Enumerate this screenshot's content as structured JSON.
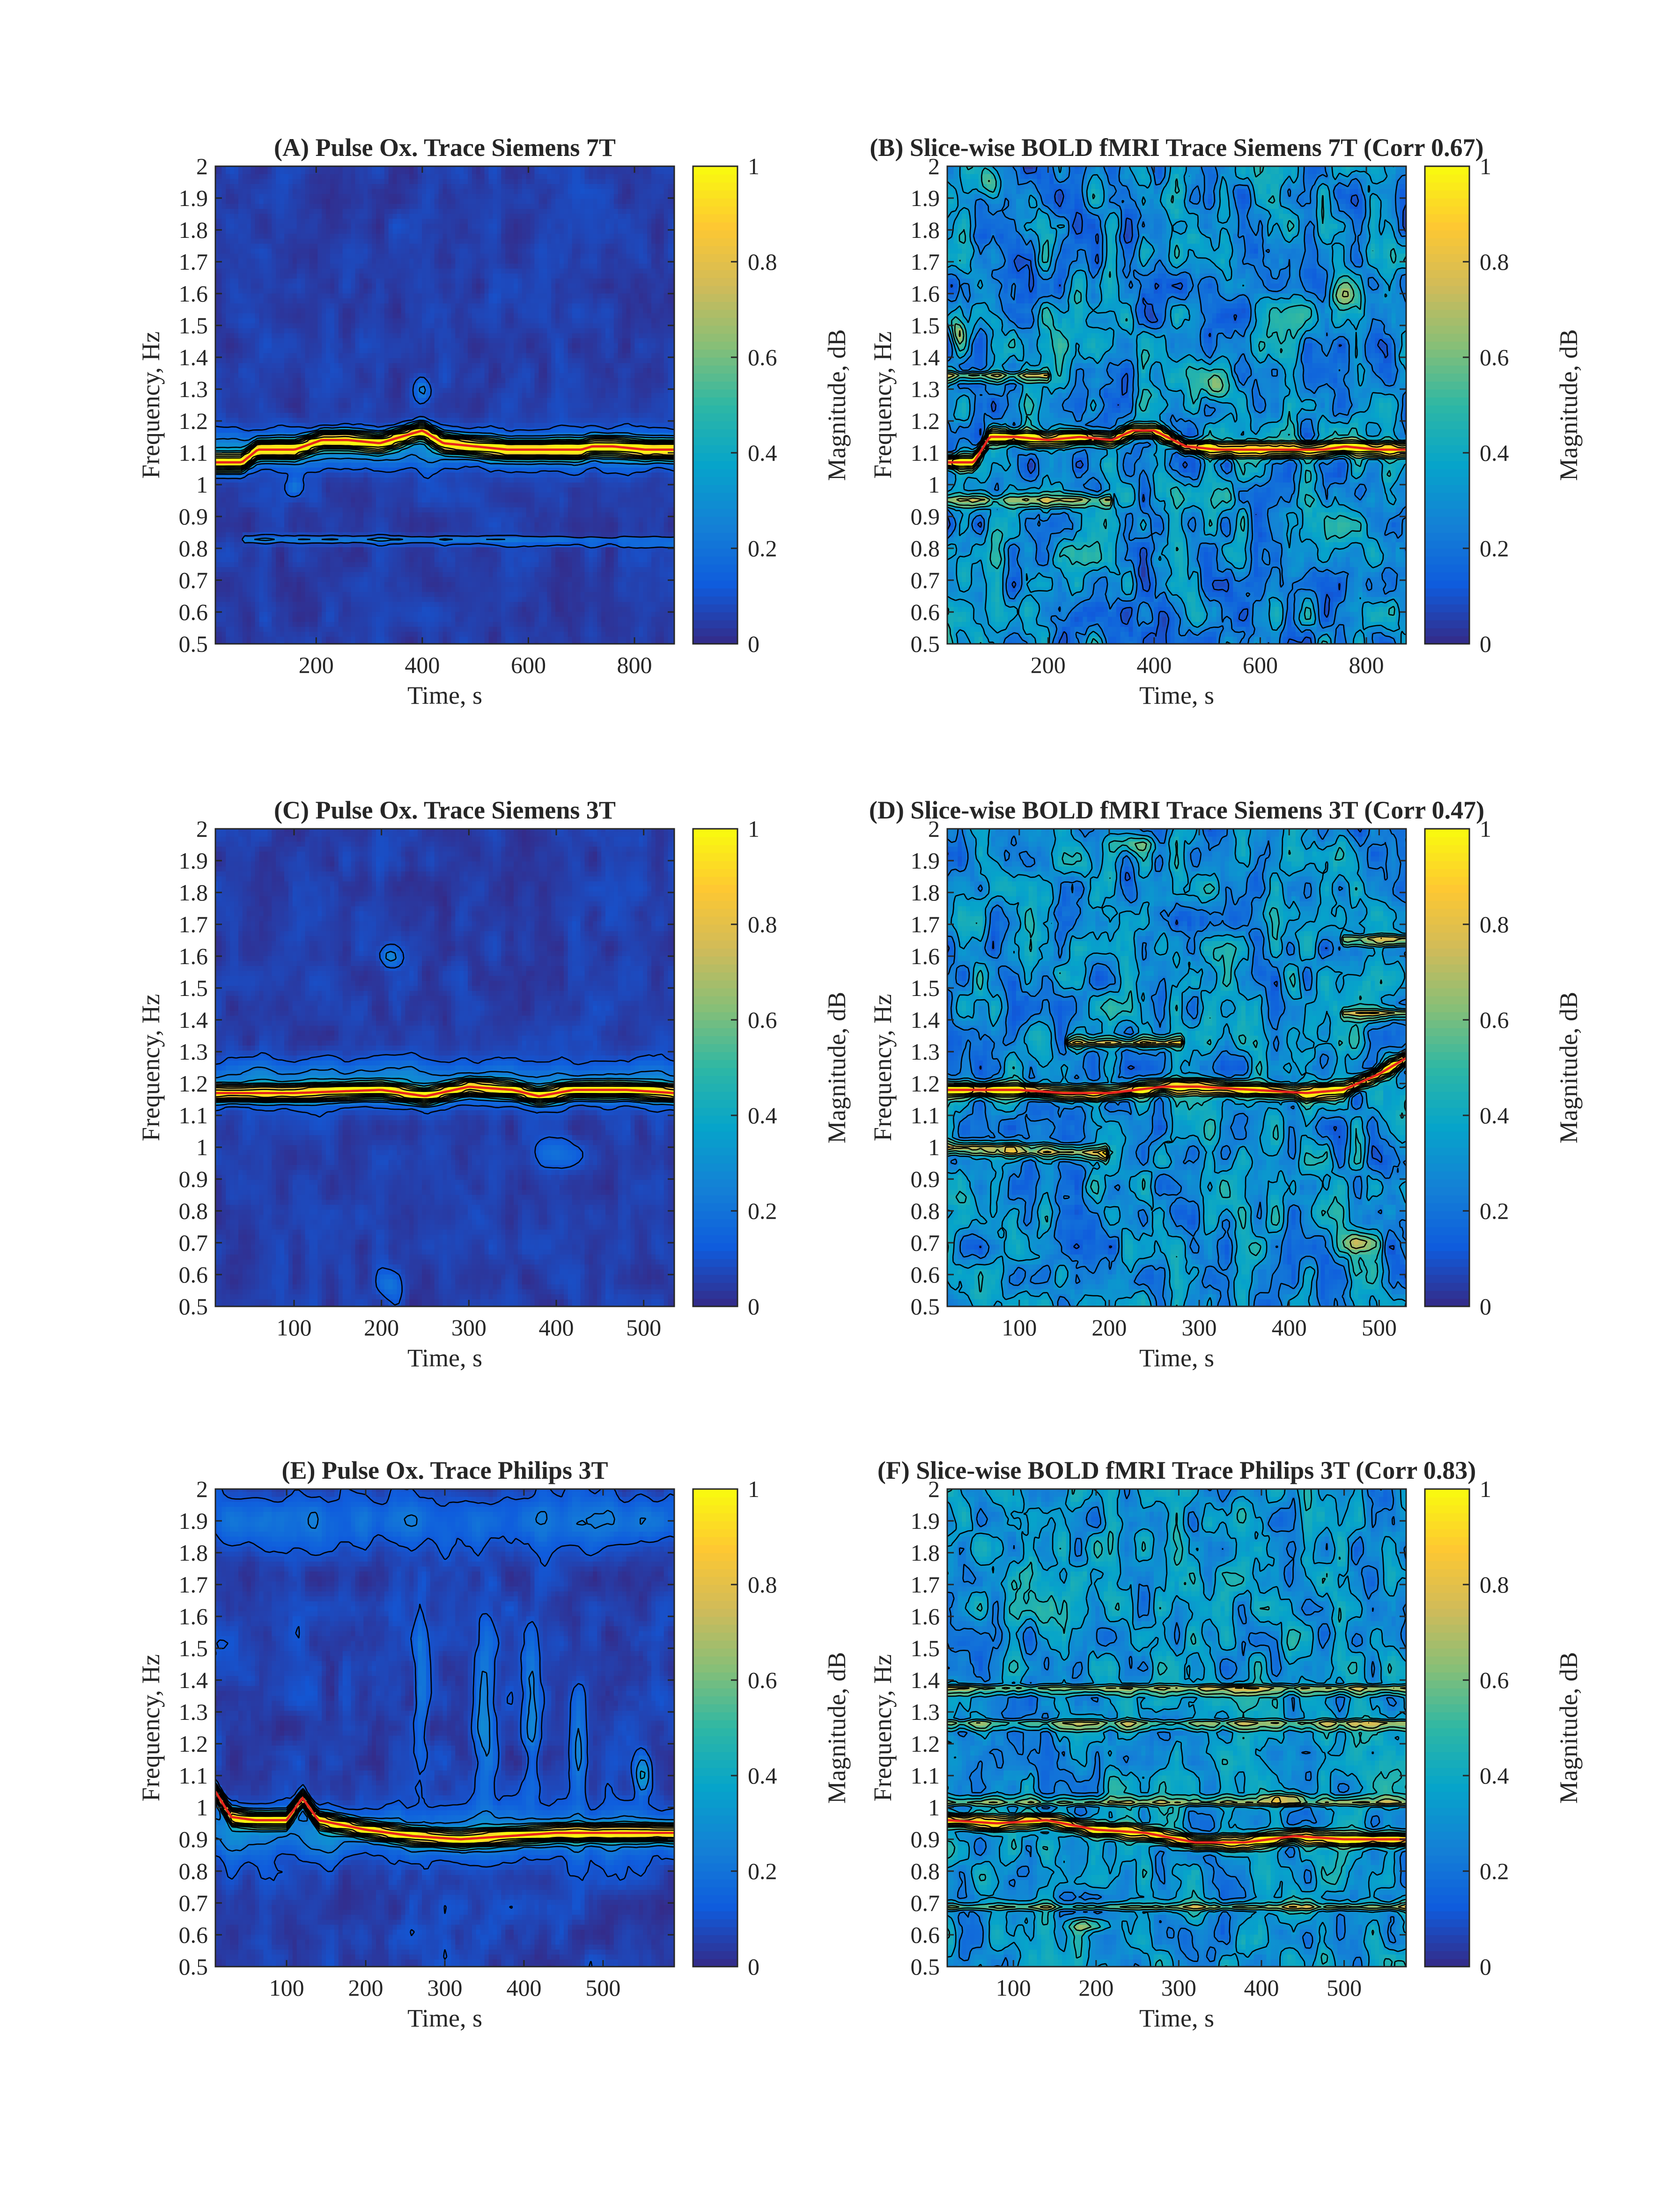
{
  "figure": {
    "colorbar": {
      "label": "Magnitude, dB",
      "ticks": [
        0,
        0.2,
        0.4,
        0.6,
        0.8,
        1
      ],
      "tick_labels": [
        "0",
        "0.2",
        "0.4",
        "0.6",
        "0.8",
        "1"
      ],
      "colormap": "parula",
      "colormap_stops": [
        "#352a87",
        "#0f5cdd",
        "#1481d6",
        "#06a4ca",
        "#2eb7a4",
        "#87bf77",
        "#d1bb59",
        "#fec832",
        "#f9fb0e"
      ]
    },
    "ridge_color": "#e8261e",
    "contour_color": "#000000"
  },
  "chart_data": [
    {
      "type": "heatmap",
      "panel": "A",
      "title": "(A) Pulse Ox. Trace Siemens 7T",
      "xlabel": "Time, s",
      "ylabel": "Frequency, Hz",
      "xlim": [
        10,
        875
      ],
      "ylim": [
        0.5,
        2
      ],
      "xticks": [
        200,
        400,
        600,
        800
      ],
      "yticks": [
        0.5,
        0.6,
        0.7,
        0.8,
        0.9,
        1,
        1.1,
        1.2,
        1.3,
        1.4,
        1.5,
        1.6,
        1.7,
        1.8,
        1.9,
        2
      ],
      "ytick_labels": [
        "0.5",
        "0.6",
        "0.7",
        "0.8",
        "0.9",
        "1",
        "1.1",
        "1.2",
        "1.3",
        "1.4",
        "1.5",
        "1.6",
        "1.7",
        "1.8",
        "1.9",
        "2"
      ],
      "background_level": 0.05,
      "noise_level": 0.04,
      "ridge": {
        "t": [
          10,
          60,
          90,
          120,
          160,
          210,
          260,
          320,
          360,
          400,
          440,
          500,
          560,
          640,
          700,
          720,
          760,
          820,
          875
        ],
        "f": [
          1.07,
          1.07,
          1.11,
          1.11,
          1.11,
          1.14,
          1.14,
          1.13,
          1.15,
          1.17,
          1.13,
          1.12,
          1.11,
          1.11,
          1.11,
          1.12,
          1.12,
          1.11,
          1.11
        ],
        "width": 0.025,
        "peak": 1.0
      },
      "ridge_line_shown": true,
      "bands": [
        {
          "t": [
            10,
            875
          ],
          "f": [
            1.11,
            1.11
          ],
          "width": 0.06,
          "peak": 0.25
        },
        {
          "t": [
            60,
            875
          ],
          "f": [
            0.83,
            0.82
          ],
          "width": 0.012,
          "peak": 0.2
        }
      ],
      "blobs": [
        {
          "t": 400,
          "f": 1.3,
          "st": 15,
          "sf": 0.04,
          "a": 0.22
        },
        {
          "t": 160,
          "f": 0.99,
          "st": 15,
          "sf": 0.03,
          "a": 0.18
        }
      ]
    },
    {
      "type": "heatmap",
      "panel": "B",
      "title": "(B) Slice-wise BOLD fMRI Trace Siemens 7T (Corr 0.67)",
      "xlabel": "Time, s",
      "ylabel": "Frequency, Hz",
      "xlim": [
        10,
        875
      ],
      "ylim": [
        0.5,
        2
      ],
      "xticks": [
        200,
        400,
        600,
        800
      ],
      "yticks": [
        0.5,
        0.6,
        0.7,
        0.8,
        0.9,
        1,
        1.1,
        1.2,
        1.3,
        1.4,
        1.5,
        1.6,
        1.7,
        1.8,
        1.9,
        2
      ],
      "ytick_labels": [
        "0.5",
        "0.6",
        "0.7",
        "0.8",
        "0.9",
        "1",
        "1.1",
        "1.2",
        "1.3",
        "1.4",
        "1.5",
        "1.6",
        "1.7",
        "1.8",
        "1.9",
        "2"
      ],
      "background_level": 0.28,
      "noise_level": 0.2,
      "ridge": {
        "t": [
          10,
          60,
          90,
          140,
          200,
          260,
          320,
          360,
          400,
          460,
          520,
          600,
          680,
          720,
          760,
          820,
          875
        ],
        "f": [
          1.07,
          1.07,
          1.15,
          1.15,
          1.14,
          1.15,
          1.14,
          1.17,
          1.17,
          1.12,
          1.11,
          1.11,
          1.11,
          1.11,
          1.12,
          1.11,
          1.11
        ],
        "width": 0.02,
        "peak": 0.85
      },
      "ridge_line_shown": true,
      "bands": [
        {
          "t": [
            10,
            320
          ],
          "f": [
            0.95,
            0.95
          ],
          "width": 0.02,
          "peak": 0.45
        },
        {
          "t": [
            10,
            200
          ],
          "f": [
            1.34,
            1.34
          ],
          "width": 0.015,
          "peak": 0.5
        }
      ],
      "blobs": [
        {
          "t": 30,
          "f": 1.48,
          "st": 15,
          "sf": 0.05,
          "a": 0.35
        },
        {
          "t": 40,
          "f": 0.7,
          "st": 20,
          "sf": 0.06,
          "a": 0.3
        },
        {
          "t": 90,
          "f": 1.95,
          "st": 25,
          "sf": 0.05,
          "a": 0.3
        },
        {
          "t": 760,
          "f": 1.6,
          "st": 30,
          "sf": 0.05,
          "a": 0.3
        },
        {
          "t": 520,
          "f": 1.3,
          "st": 30,
          "sf": 0.05,
          "a": 0.28
        }
      ]
    },
    {
      "type": "heatmap",
      "panel": "C",
      "title": "(C) Pulse Ox. Trace Siemens 3T",
      "xlabel": "Time, s",
      "ylabel": "Frequency, Hz",
      "xlim": [
        10,
        535
      ],
      "ylim": [
        0.5,
        2
      ],
      "xticks": [
        100,
        200,
        300,
        400,
        500
      ],
      "yticks": [
        0.5,
        0.6,
        0.7,
        0.8,
        0.9,
        1,
        1.1,
        1.2,
        1.3,
        1.4,
        1.5,
        1.6,
        1.7,
        1.8,
        1.9,
        2
      ],
      "ytick_labels": [
        "0.5",
        "0.6",
        "0.7",
        "0.8",
        "0.9",
        "1",
        "1.1",
        "1.2",
        "1.3",
        "1.4",
        "1.5",
        "1.6",
        "1.7",
        "1.8",
        "1.9",
        "2"
      ],
      "background_level": 0.05,
      "noise_level": 0.04,
      "ridge": {
        "t": [
          10,
          100,
          200,
          250,
          300,
          350,
          380,
          420,
          480,
          535
        ],
        "f": [
          1.17,
          1.17,
          1.18,
          1.16,
          1.19,
          1.18,
          1.16,
          1.18,
          1.18,
          1.17
        ],
        "width": 0.022,
        "peak": 1.0
      },
      "ridge_line_shown": true,
      "bands": [
        {
          "t": [
            10,
            535
          ],
          "f": [
            1.2,
            1.2
          ],
          "width": 0.07,
          "peak": 0.25
        }
      ],
      "blobs": [
        {
          "t": 210,
          "f": 1.6,
          "st": 12,
          "sf": 0.03,
          "a": 0.2
        },
        {
          "t": 400,
          "f": 0.98,
          "st": 30,
          "sf": 0.05,
          "a": 0.16
        },
        {
          "t": 210,
          "f": 0.57,
          "st": 15,
          "sf": 0.05,
          "a": 0.16
        }
      ]
    },
    {
      "type": "heatmap",
      "panel": "D",
      "title": "(D) Slice-wise BOLD fMRI Trace Siemens 3T (Corr 0.47)",
      "xlabel": "Time, s",
      "ylabel": "Frequency, Hz",
      "xlim": [
        20,
        530
      ],
      "ylim": [
        0.5,
        2
      ],
      "xticks": [
        100,
        200,
        300,
        400,
        500
      ],
      "yticks": [
        0.5,
        0.6,
        0.7,
        0.8,
        0.9,
        1,
        1.1,
        1.2,
        1.3,
        1.4,
        1.5,
        1.6,
        1.7,
        1.8,
        1.9,
        2
      ],
      "ytick_labels": [
        "0.5",
        "0.6",
        "0.7",
        "0.8",
        "0.9",
        "1",
        "1.1",
        "1.2",
        "1.3",
        "1.4",
        "1.5",
        "1.6",
        "1.7",
        "1.8",
        "1.9",
        "2"
      ],
      "background_level": 0.3,
      "noise_level": 0.18,
      "ridge": {
        "t": [
          20,
          100,
          150,
          200,
          260,
          300,
          360,
          420,
          460,
          500,
          530
        ],
        "f": [
          1.18,
          1.18,
          1.17,
          1.17,
          1.19,
          1.19,
          1.18,
          1.17,
          1.18,
          1.23,
          1.28
        ],
        "width": 0.02,
        "peak": 0.8
      },
      "ridge_line_shown": true,
      "bands": [
        {
          "t": [
            20,
            200
          ],
          "f": [
            1.0,
            0.98
          ],
          "width": 0.02,
          "peak": 0.6
        },
        {
          "t": [
            150,
            280
          ],
          "f": [
            1.33,
            1.33
          ],
          "width": 0.015,
          "peak": 0.55
        },
        {
          "t": [
            460,
            530
          ],
          "f": [
            1.65,
            1.65
          ],
          "width": 0.015,
          "peak": 0.5
        },
        {
          "t": [
            460,
            530
          ],
          "f": [
            1.42,
            1.42
          ],
          "width": 0.015,
          "peak": 0.45
        }
      ],
      "blobs": [
        {
          "t": 230,
          "f": 1.95,
          "st": 25,
          "sf": 0.03,
          "a": 0.3
        },
        {
          "t": 480,
          "f": 0.7,
          "st": 20,
          "sf": 0.03,
          "a": 0.3
        }
      ]
    },
    {
      "type": "heatmap",
      "panel": "E",
      "title": "(E) Pulse Ox. Trace Philips 3T",
      "xlabel": "Time, s",
      "ylabel": "Frequency, Hz",
      "xlim": [
        10,
        590
      ],
      "ylim": [
        0.5,
        2
      ],
      "xticks": [
        100,
        200,
        300,
        400,
        500
      ],
      "yticks": [
        0.5,
        0.6,
        0.7,
        0.8,
        0.9,
        1,
        1.1,
        1.2,
        1.3,
        1.4,
        1.5,
        1.6,
        1.7,
        1.8,
        1.9,
        2
      ],
      "ytick_labels": [
        "0.5",
        "0.6",
        "0.7",
        "0.8",
        "0.9",
        "1",
        "1.1",
        "1.2",
        "1.3",
        "1.4",
        "1.5",
        "1.6",
        "1.7",
        "1.8",
        "1.9",
        "2"
      ],
      "background_level": 0.06,
      "noise_level": 0.05,
      "ridge": {
        "t": [
          10,
          30,
          60,
          100,
          120,
          140,
          200,
          260,
          320,
          380,
          440,
          500,
          560,
          590
        ],
        "f": [
          1.05,
          0.97,
          0.96,
          0.96,
          1.03,
          0.96,
          0.93,
          0.91,
          0.9,
          0.91,
          0.92,
          0.92,
          0.92,
          0.92
        ],
        "width": 0.022,
        "peak": 1.0
      },
      "ridge_line_shown": true,
      "bands": [
        {
          "t": [
            10,
            590
          ],
          "f": [
            0.92,
            0.92
          ],
          "width": 0.08,
          "peak": 0.22
        },
        {
          "t": [
            10,
            590
          ],
          "f": [
            1.9,
            1.9
          ],
          "width": 0.08,
          "peak": 0.14
        }
      ],
      "blobs": [
        {
          "t": 270,
          "f": 1.4,
          "st": 8,
          "sf": 0.25,
          "a": 0.16
        },
        {
          "t": 350,
          "f": 1.3,
          "st": 12,
          "sf": 0.3,
          "a": 0.2
        },
        {
          "t": 410,
          "f": 1.3,
          "st": 10,
          "sf": 0.25,
          "a": 0.18
        },
        {
          "t": 470,
          "f": 1.2,
          "st": 10,
          "sf": 0.2,
          "a": 0.16
        },
        {
          "t": 550,
          "f": 1.1,
          "st": 10,
          "sf": 0.06,
          "a": 0.3
        }
      ]
    },
    {
      "type": "heatmap",
      "panel": "F",
      "title": "(F) Slice-wise BOLD fMRI Trace Philips 3T (Corr 0.83)",
      "xlabel": "Time, s",
      "ylabel": "Frequency, Hz",
      "xlim": [
        20,
        575
      ],
      "ylim": [
        0.5,
        2
      ],
      "xticks": [
        100,
        200,
        300,
        400,
        500
      ],
      "yticks": [
        0.5,
        0.6,
        0.7,
        0.8,
        0.9,
        1,
        1.1,
        1.2,
        1.3,
        1.4,
        1.5,
        1.6,
        1.7,
        1.8,
        1.9,
        2
      ],
      "ytick_labels": [
        "0.5",
        "0.6",
        "0.7",
        "0.8",
        "0.9",
        "1",
        "1.1",
        "1.2",
        "1.3",
        "1.4",
        "1.5",
        "1.6",
        "1.7",
        "1.8",
        "1.9",
        "2"
      ],
      "background_level": 0.32,
      "noise_level": 0.16,
      "ridge": {
        "t": [
          20,
          80,
          140,
          200,
          260,
          320,
          380,
          440,
          500,
          575
        ],
        "f": [
          0.96,
          0.95,
          0.96,
          0.93,
          0.92,
          0.89,
          0.89,
          0.91,
          0.9,
          0.9
        ],
        "width": 0.02,
        "peak": 0.8
      },
      "ridge_line_shown": true,
      "bands": [
        {
          "t": [
            20,
            575
          ],
          "f": [
            1.37,
            1.37
          ],
          "width": 0.012,
          "peak": 0.45
        },
        {
          "t": [
            20,
            575
          ],
          "f": [
            1.26,
            1.26
          ],
          "width": 0.012,
          "peak": 0.42
        },
        {
          "t": [
            20,
            575
          ],
          "f": [
            1.02,
            1.02
          ],
          "width": 0.012,
          "peak": 0.4
        },
        {
          "t": [
            20,
            575
          ],
          "f": [
            0.69,
            0.69
          ],
          "width": 0.012,
          "peak": 0.38
        }
      ],
      "blobs": [
        {
          "t": 190,
          "f": 0.63,
          "st": 25,
          "sf": 0.02,
          "a": 0.35
        },
        {
          "t": 430,
          "f": 1.03,
          "st": 25,
          "sf": 0.02,
          "a": 0.35
        }
      ]
    }
  ]
}
